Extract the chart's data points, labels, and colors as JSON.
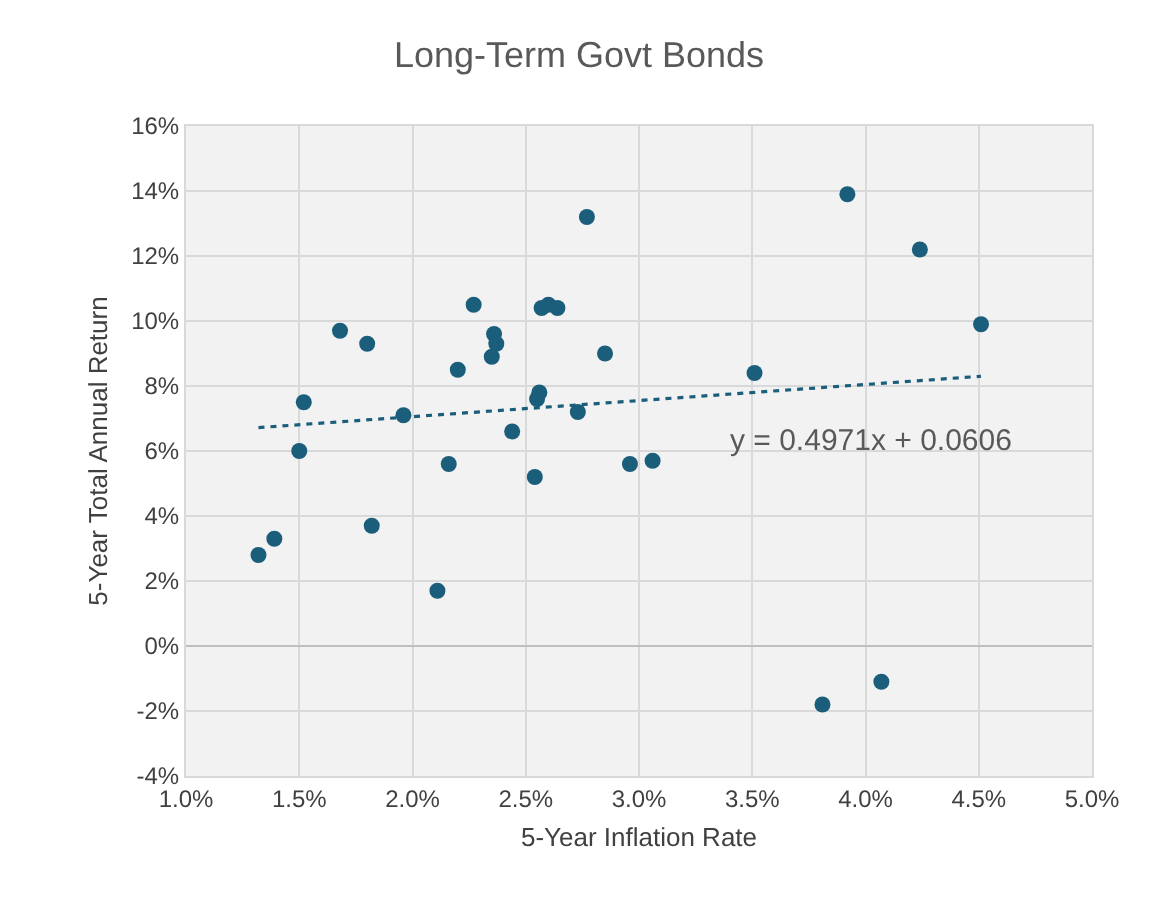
{
  "chart_data": {
    "type": "scatter",
    "title": "Long-Term Govt Bonds",
    "xlabel": "5-Year Inflation Rate",
    "ylabel": "5-Year Total Annual Return",
    "x": [
      1.32,
      1.39,
      1.5,
      1.52,
      1.68,
      1.8,
      1.82,
      1.96,
      2.11,
      2.16,
      2.2,
      2.27,
      2.35,
      2.36,
      2.37,
      2.44,
      2.54,
      2.55,
      2.56,
      2.57,
      2.6,
      2.64,
      2.73,
      2.77,
      2.85,
      2.96,
      3.06,
      3.51,
      3.92,
      4.24,
      4.51,
      3.81,
      4.07
    ],
    "series": [
      {
        "color": "#1b5e7b",
        "values": [
          2.8,
          3.3,
          6.0,
          7.5,
          9.7,
          9.3,
          3.7,
          7.1,
          1.7,
          5.6,
          8.5,
          10.5,
          8.9,
          9.6,
          9.3,
          6.6,
          5.2,
          7.6,
          7.8,
          10.4,
          10.5,
          10.4,
          7.2,
          13.2,
          9.0,
          5.6,
          5.7,
          8.4,
          13.9,
          12.2,
          9.9,
          -1.8,
          -1.1
        ]
      },
      {
        "type": "line",
        "color": "#1b5e7b",
        "line_style": "dotted",
        "marker": "none",
        "x": [
          1.32,
          4.51
        ],
        "values": [
          6.72,
          8.3
        ]
      }
    ],
    "marker": "circle",
    "annotations": [
      "y = 0.4971x + 0.0606"
    ],
    "xlim": [
      1.0,
      5.0
    ],
    "xticks": [
      {
        "value": 1.0,
        "label": "1.0%"
      },
      {
        "value": 1.5,
        "label": "1.5%"
      },
      {
        "value": 2.0,
        "label": "2.0%"
      },
      {
        "value": 2.5,
        "label": "2.5%"
      },
      {
        "value": 3.0,
        "label": "3.0%"
      },
      {
        "value": 3.5,
        "label": "3.5%"
      },
      {
        "value": 4.0,
        "label": "4.0%"
      },
      {
        "value": 4.5,
        "label": "4.5%"
      },
      {
        "value": 5.0,
        "label": "5.0%"
      }
    ],
    "ylim": [
      -4,
      16
    ],
    "yticks": [
      {
        "value": -4,
        "label": "-4%"
      },
      {
        "value": -2,
        "label": "-2%"
      },
      {
        "value": 0,
        "label": "0%"
      },
      {
        "value": 2,
        "label": "2%"
      },
      {
        "value": 4,
        "label": "4%"
      },
      {
        "value": 6,
        "label": "6%"
      },
      {
        "value": 8,
        "label": "8%"
      },
      {
        "value": 10,
        "label": "10%"
      },
      {
        "value": 12,
        "label": "12%"
      },
      {
        "value": 14,
        "label": "14%"
      },
      {
        "value": 16,
        "label": "16%"
      }
    ],
    "grid": true
  }
}
